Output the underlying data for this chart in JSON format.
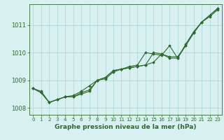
{
  "xlabel": "Graphe pression niveau de la mer (hPa)",
  "x": [
    0,
    1,
    2,
    3,
    4,
    5,
    6,
    7,
    8,
    9,
    10,
    11,
    12,
    13,
    14,
    15,
    16,
    17,
    18,
    19,
    20,
    21,
    22,
    23
  ],
  "line1": [
    1008.7,
    1008.6,
    1008.2,
    1008.3,
    1008.4,
    1008.4,
    1008.5,
    1008.6,
    1009.0,
    1009.1,
    1009.35,
    1009.4,
    1009.45,
    1009.5,
    1009.55,
    1009.65,
    1009.95,
    1009.85,
    1009.85,
    1010.25,
    1010.7,
    1011.1,
    1011.3,
    1011.55
  ],
  "line2": [
    1008.7,
    1008.55,
    1008.2,
    1008.3,
    1008.4,
    1008.4,
    1008.55,
    1008.65,
    1009.0,
    1009.05,
    1009.3,
    1009.4,
    1009.45,
    1009.5,
    1009.55,
    1010.0,
    1009.95,
    1009.8,
    1009.8,
    1010.25,
    1010.75,
    1011.1,
    1011.35,
    1011.6
  ],
  "line3": [
    1008.7,
    1008.55,
    1008.2,
    1008.3,
    1008.4,
    1008.45,
    1008.6,
    1008.8,
    1009.0,
    1009.1,
    1009.35,
    1009.4,
    1009.5,
    1009.55,
    1010.0,
    1009.95,
    1009.9,
    1010.25,
    1009.8,
    1010.3,
    1010.75,
    1011.1,
    1011.35,
    1011.6
  ],
  "line_color": "#2d6a2d",
  "bg_color": "#d8f0f0",
  "grid_color": "#aad4d4",
  "ylim": [
    1007.75,
    1011.75
  ],
  "yticks": [
    1008,
    1009,
    1010,
    1011
  ],
  "xticks": [
    0,
    1,
    2,
    3,
    4,
    5,
    6,
    7,
    8,
    9,
    10,
    11,
    12,
    13,
    14,
    15,
    16,
    17,
    18,
    19,
    20,
    21,
    22,
    23
  ],
  "xlabel_fontsize": 6.5,
  "ytick_fontsize": 6.0,
  "xtick_fontsize": 5.0,
  "line_width": 0.8,
  "marker": "D",
  "marker_size": 1.8
}
